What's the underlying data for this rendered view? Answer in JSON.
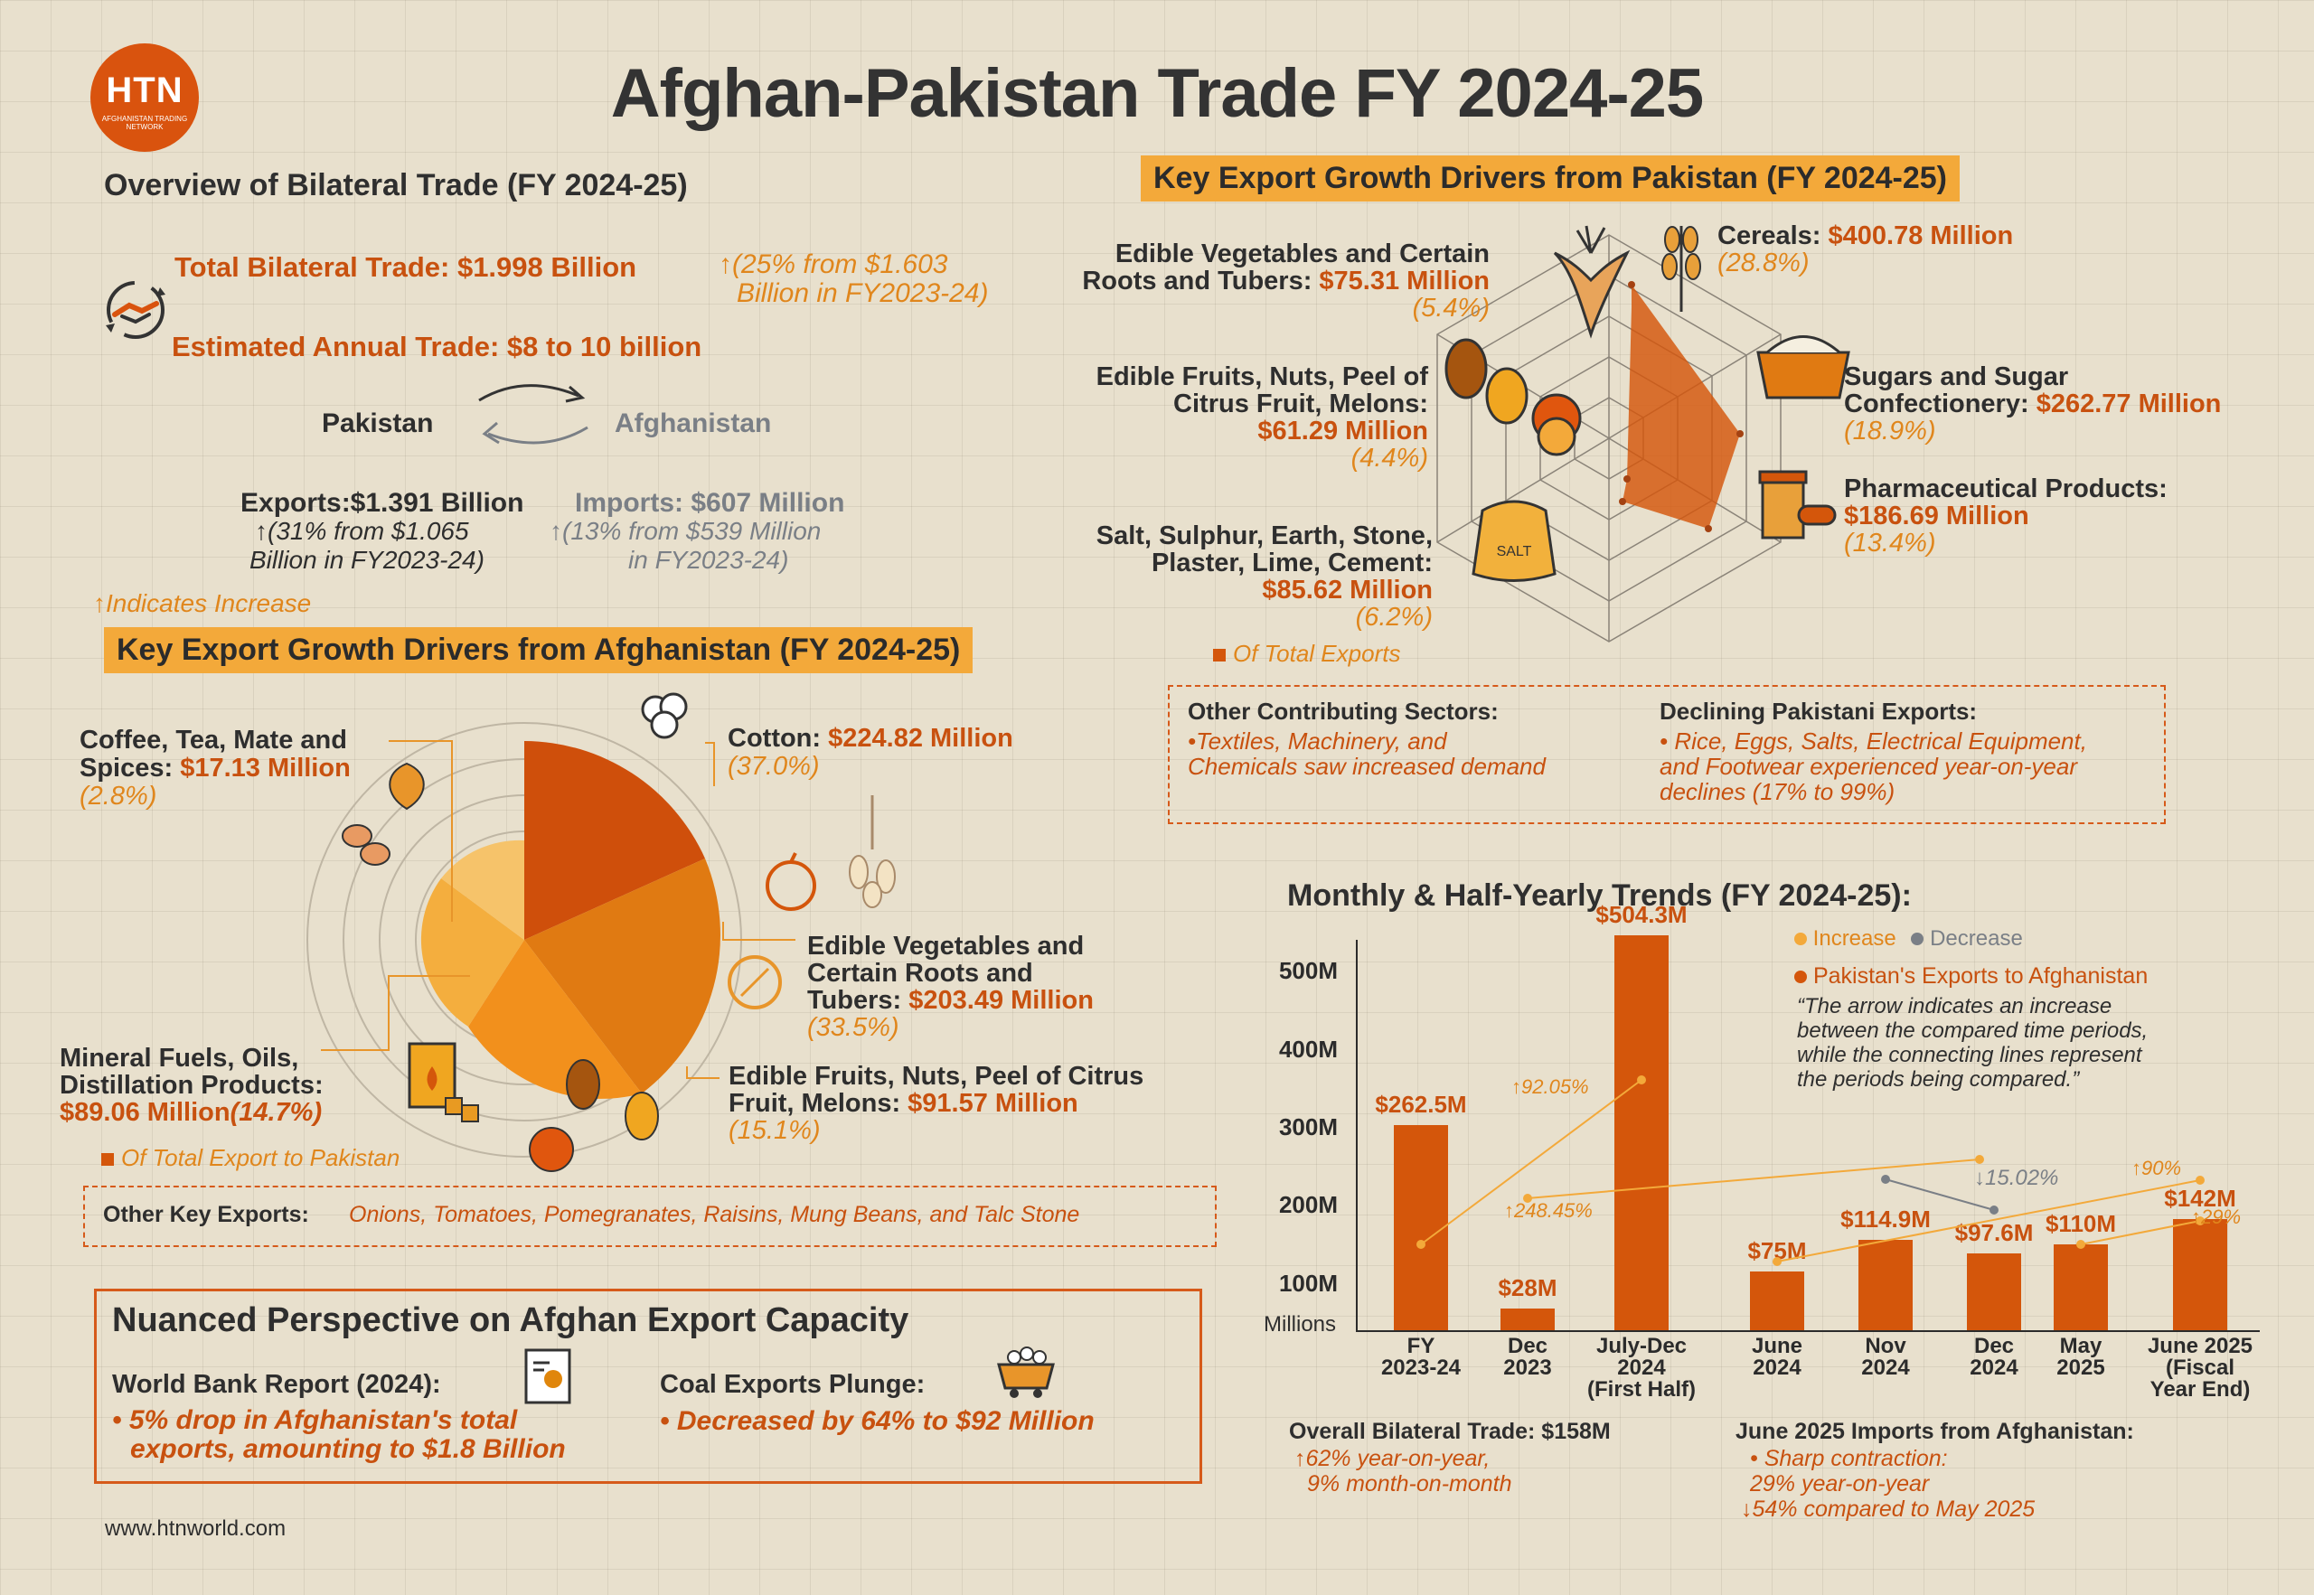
{
  "brand": {
    "logo_text": "HTN",
    "logo_sub": "AFGHANISTAN TRADING NETWORK",
    "website": "www.htnworld.com"
  },
  "title": "Afghan-Pakistan Trade FY 2024-25",
  "overview": {
    "heading": "Overview of Bilateral Trade (FY 2024-25)",
    "total_label": "Total Bilateral Trade: $1.998 Billion",
    "total_change_1": "(25% from $1.603",
    "total_change_2": "Billion in FY2023-24)",
    "estimated": "Estimated Annual Trade: $8 to 10 billion",
    "pakistan": "Pakistan",
    "afghanistan": "Afghanistan",
    "exports_label": "Exports:$1.391 Billion",
    "exports_change_1": "(31% from $1.065",
    "exports_change_2": "Billion in FY2023-24)",
    "imports_label": "Imports: $607 Million",
    "imports_change_1": "(13% from $539 Million",
    "imports_change_2": "in FY2023-24)",
    "indicates": "Indicates Increase",
    "up_arrow": "↑",
    "down_arrow": "↓"
  },
  "pak_exports": {
    "heading": "Key Export Growth Drivers from Pakistan (FY 2024-25)",
    "legend": "Of Total Exports",
    "salt_label": "SALT",
    "items": [
      {
        "l1": "Edible Vegetables and Certain",
        "l2": "Roots and Tubers: ",
        "value": "$75.31 Million",
        "pct": "(5.4%)",
        "share": 5.4
      },
      {
        "l1": "Cereals: ",
        "value": "$400.78 Million",
        "pct": "(28.8%)",
        "share": 28.8
      },
      {
        "l1": "Sugars and Sugar",
        "l2": "Confectionery: ",
        "value": "$262.77 Million",
        "pct": "(18.9%)",
        "share": 18.9
      },
      {
        "l1": "Pharmaceutical Products:",
        "value": "$186.69 Million",
        "pct": "(13.4%)",
        "share": 13.4
      },
      {
        "l1": "Salt, Sulphur, Earth, Stone,",
        "l2": "Plaster, Lime, Cement:",
        "value": "$85.62 Million",
        "pct": "(6.2%)",
        "share": 6.2
      },
      {
        "l1": "Edible Fruits, Nuts, Peel of",
        "l2": "Citrus Fruit, Melons:",
        "value": "$61.29 Million",
        "pct": "(4.4%)",
        "share": 4.4
      }
    ],
    "other_heading": "Other Contributing Sectors:",
    "other_1": "•Textiles, Machinery, and",
    "other_2": "Chemicals saw increased demand",
    "declining_heading": "Declining Pakistani Exports:",
    "declining_1": "• Rice, Eggs, Salts, Electrical  Equipment,",
    "declining_2": "and Footwear experienced year-on-year",
    "declining_3": " declines (17% to 99%)"
  },
  "afg_exports": {
    "heading": "Key Export Growth Drivers from Afghanistan (FY 2024-25)",
    "legend": "Of Total Export to Pakistan",
    "coffee_1": "Coffee, Tea, Mate and",
    "coffee_2": "Spices: ",
    "coffee_value": "$17.13 Million",
    "coffee_pct": "(2.8%)",
    "cotton_1": "Cotton: ",
    "cotton_value": "$224.82 Million",
    "cotton_pct": "(37.0%)",
    "veg_1": "Edible Vegetables and",
    "veg_2": "Certain Roots and",
    "veg_3": "Tubers: ",
    "veg_value": "$203.49 Million",
    "veg_pct": "(33.5%)",
    "fruit_1": "Edible Fruits, Nuts, Peel of Citrus",
    "fruit_2": "Fruit, Melons: ",
    "fruit_value": "$91.57 Million",
    "fruit_pct": "(15.1%)",
    "fuel_1": "Mineral Fuels, Oils,",
    "fuel_2": "Distillation Products:",
    "fuel_value": "$89.06 Million",
    "fuel_pct": "(14.7%)",
    "other_label": "Other Key Exports:",
    "other_items": "Onions, Tomatoes, Pomegranates, Raisins, Mung Beans, and Talc Stone"
  },
  "nuanced": {
    "heading": "Nuanced Perspective on Afghan Export Capacity",
    "wb_label": "World Bank Report (2024):",
    "wb_1": "• 5% drop in Afghanistan's total",
    "wb_2": "exports, amounting to $1.8 Billion",
    "coal_label": "Coal Exports Plunge:",
    "coal_1": "• Decreased by 64% to $92 Million"
  },
  "trends": {
    "heading": "Monthly & Half-Yearly Trends (FY 2024-25):",
    "legend_increase": "Increase",
    "legend_decrease": "Decrease",
    "legend_series": "Pakistan's Exports to Afghanistan",
    "quote_1": "“The arrow indicates an increase",
    "quote_2": "between the compared time periods,",
    "quote_3": "while the connecting lines represent",
    "quote_4": "the periods being compared.”",
    "millions": "Millions",
    "pct_9205": "92.05%",
    "pct_24845": "248.45%",
    "pct_1502": "15.02%",
    "pct_90": "90%",
    "pct_29": "29%",
    "overall_label": "Overall Bilateral Trade: $158M",
    "overall_1": "62% year-on-year,",
    "overall_2": "9% month-on-month",
    "june_label": "June 2025 Imports from Afghanistan:",
    "june_1": "• Sharp contraction:",
    "june_2": "29% year-on-year",
    "june_3": "54% compared to May 2025"
  },
  "chart_data": {
    "type": "bar",
    "title": "Monthly & Half-Yearly Trends (FY 2024-25):",
    "ylabel": "Millions",
    "ylim": [
      0,
      560
    ],
    "yticks": [
      "100M",
      "200M",
      "300M",
      "400M",
      "500M"
    ],
    "categories": [
      [
        "FY",
        "2023-24"
      ],
      [
        "Dec",
        "2023"
      ],
      [
        "July-Dec",
        "2024",
        "(First Half)"
      ],
      [
        "June",
        "2024"
      ],
      [
        "Nov",
        "2024"
      ],
      [
        "Dec",
        "2024"
      ],
      [
        "May",
        "2025"
      ],
      [
        "June 2025",
        "(Fiscal",
        "Year End)"
      ]
    ],
    "series": [
      {
        "name": "Pakistan's Exports to Afghanistan",
        "values": [
          262.5,
          28,
          504.3,
          75,
          114.9,
          97.6,
          110,
          142
        ]
      }
    ],
    "value_labels": [
      "$262.5M",
      "$28M",
      "$504.3M",
      "$75M",
      "$114.9M",
      "$97.6M",
      "$110M",
      "$142M"
    ],
    "colors": {
      "bar": "#d4560b",
      "increase": "#f3a93a",
      "decrease": "#7a7f86"
    }
  }
}
